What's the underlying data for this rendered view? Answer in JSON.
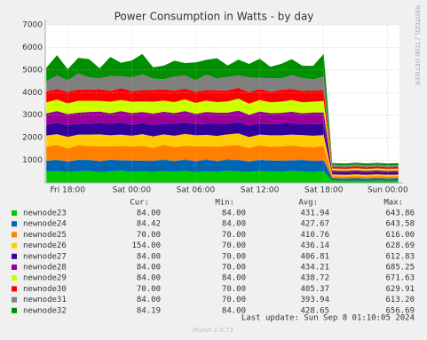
{
  "chart_data": {
    "type": "stacked_area",
    "title": "Power Consumption in Watts - by day",
    "side_label": "RRDTOOL / TOBI OETIKER",
    "x": [
      16,
      17,
      18,
      19,
      20,
      21,
      22,
      23,
      24,
      25,
      26,
      27,
      28,
      29,
      30,
      31,
      32,
      33,
      34,
      35,
      36,
      37,
      38,
      39,
      40,
      41,
      42,
      42.8,
      44,
      45,
      46,
      47,
      48,
      49
    ],
    "xlim": [
      15.9,
      49.1
    ],
    "xticks": [
      {
        "value": 18,
        "label": "Fri 18:00"
      },
      {
        "value": 24,
        "label": "Sat 00:00"
      },
      {
        "value": 30,
        "label": "Sat 06:00"
      },
      {
        "value": 36,
        "label": "Sat 12:00"
      },
      {
        "value": 42,
        "label": "Sat 18:00"
      },
      {
        "value": 48,
        "label": "Sun 00:00"
      }
    ],
    "ylim": [
      0,
      7000
    ],
    "yticks": [
      1000,
      2000,
      3000,
      4000,
      5000,
      6000,
      7000
    ],
    "grid": true,
    "legend_headers": [
      "Cur:",
      "Min:",
      "Avg:",
      "Max:"
    ],
    "series": [
      {
        "name": "newnode23",
        "color": "#00cc00",
        "stats": [
          "84.00",
          "84.00",
          "431.94",
          "643.86"
        ],
        "values": [
          500,
          520,
          480,
          510,
          530,
          470,
          500,
          540,
          490,
          510,
          480,
          520,
          500,
          530,
          470,
          510,
          490,
          540,
          500,
          480,
          520,
          510,
          490,
          530,
          500,
          470,
          510,
          110,
          100,
          105,
          95,
          110,
          100,
          105
        ]
      },
      {
        "name": "newnode24",
        "color": "#0066b3",
        "stats": [
          "84.42",
          "84.00",
          "427.67",
          "643.58"
        ],
        "values": [
          480,
          510,
          460,
          520,
          500,
          490,
          530,
          470,
          510,
          480,
          500,
          520,
          470,
          510,
          490,
          530,
          480,
          500,
          520,
          470,
          510,
          490,
          500,
          480,
          520,
          510,
          490,
          90,
          85,
          95,
          88,
          92,
          86,
          90
        ]
      },
      {
        "name": "newnode25",
        "color": "#ff8000",
        "stats": [
          "70.00",
          "70.00",
          "410.76",
          "616.00"
        ],
        "values": [
          620,
          650,
          580,
          640,
          600,
          660,
          590,
          630,
          610,
          650,
          570,
          640,
          620,
          600,
          660,
          580,
          630,
          610,
          650,
          590,
          640,
          600,
          620,
          650,
          580,
          610,
          630,
          100,
          95,
          105,
          98,
          102,
          96,
          100
        ]
      },
      {
        "name": "newnode26",
        "color": "#ffcc00",
        "stats": [
          "154.00",
          "70.00",
          "436.14",
          "628.69"
        ],
        "values": [
          500,
          480,
          520,
          470,
          510,
          530,
          490,
          500,
          480,
          520,
          510,
          470,
          500,
          530,
          490,
          510,
          480,
          500,
          520,
          490,
          470,
          510,
          500,
          480,
          520,
          500,
          490,
          80,
          85,
          78,
          82,
          80,
          84,
          79
        ]
      },
      {
        "name": "newnode27",
        "color": "#330099",
        "stats": [
          "84.00",
          "70.00",
          "406.81",
          "612.83"
        ],
        "values": [
          480,
          500,
          520,
          490,
          470,
          510,
          500,
          530,
          480,
          490,
          510,
          470,
          520,
          500,
          480,
          490,
          530,
          470,
          500,
          510,
          490,
          480,
          520,
          500,
          470,
          510,
          500,
          85,
          82,
          88,
          84,
          86,
          83,
          85
        ]
      },
      {
        "name": "newnode28",
        "color": "#990099",
        "stats": [
          "84.00",
          "70.00",
          "434.21",
          "685.25"
        ],
        "values": [
          500,
          520,
          490,
          480,
          530,
          500,
          470,
          510,
          520,
          490,
          500,
          530,
          480,
          510,
          470,
          520,
          500,
          490,
          510,
          480,
          530,
          500,
          470,
          510,
          490,
          520,
          500,
          88,
          85,
          90,
          86,
          87,
          84,
          88
        ]
      },
      {
        "name": "newnode29",
        "color": "#ccff00",
        "stats": [
          "84.00",
          "84.00",
          "438.72",
          "671.63"
        ],
        "values": [
          490,
          510,
          470,
          530,
          500,
          480,
          520,
          490,
          510,
          470,
          530,
          500,
          490,
          520,
          480,
          510,
          470,
          500,
          530,
          490,
          510,
          480,
          500,
          520,
          490,
          480,
          510,
          85,
          84,
          87,
          83,
          86,
          85,
          84
        ]
      },
      {
        "name": "newnode30",
        "color": "#ff0000",
        "stats": [
          "70.00",
          "70.00",
          "405.37",
          "629.91"
        ],
        "values": [
          480,
          470,
          520,
          500,
          490,
          510,
          480,
          530,
          470,
          500,
          520,
          490,
          510,
          480,
          500,
          470,
          520,
          490,
          480,
          510,
          500,
          470,
          520,
          490,
          510,
          500,
          480,
          82,
          80,
          84,
          81,
          83,
          80,
          82
        ]
      },
      {
        "name": "newnode31",
        "color": "#808080",
        "stats": [
          "84.00",
          "70.00",
          "393.94",
          "613.20"
        ],
        "values": [
          450,
          600,
          500,
          700,
          550,
          480,
          650,
          520,
          600,
          700,
          500,
          450,
          620,
          580,
          500,
          680,
          520,
          600,
          550,
          650,
          480,
          600,
          500,
          620,
          560,
          480,
          600,
          80,
          78,
          82,
          79,
          81,
          80,
          78
        ]
      },
      {
        "name": "newnode32",
        "color": "#008f00",
        "stats": [
          "84.19",
          "84.00",
          "428.65",
          "656.69"
        ],
        "values": [
          600,
          900,
          500,
          700,
          800,
          450,
          850,
          600,
          750,
          900,
          500,
          600,
          700,
          550,
          800,
          650,
          900,
          500,
          700,
          600,
          850,
          500,
          650,
          700,
          550,
          600,
          1000,
          80,
          82,
          79,
          84,
          80,
          81,
          83
        ]
      }
    ],
    "last_update": "Last update: Sun Sep  8 01:10:05 2024",
    "footer": "Munin 2.0.73"
  }
}
